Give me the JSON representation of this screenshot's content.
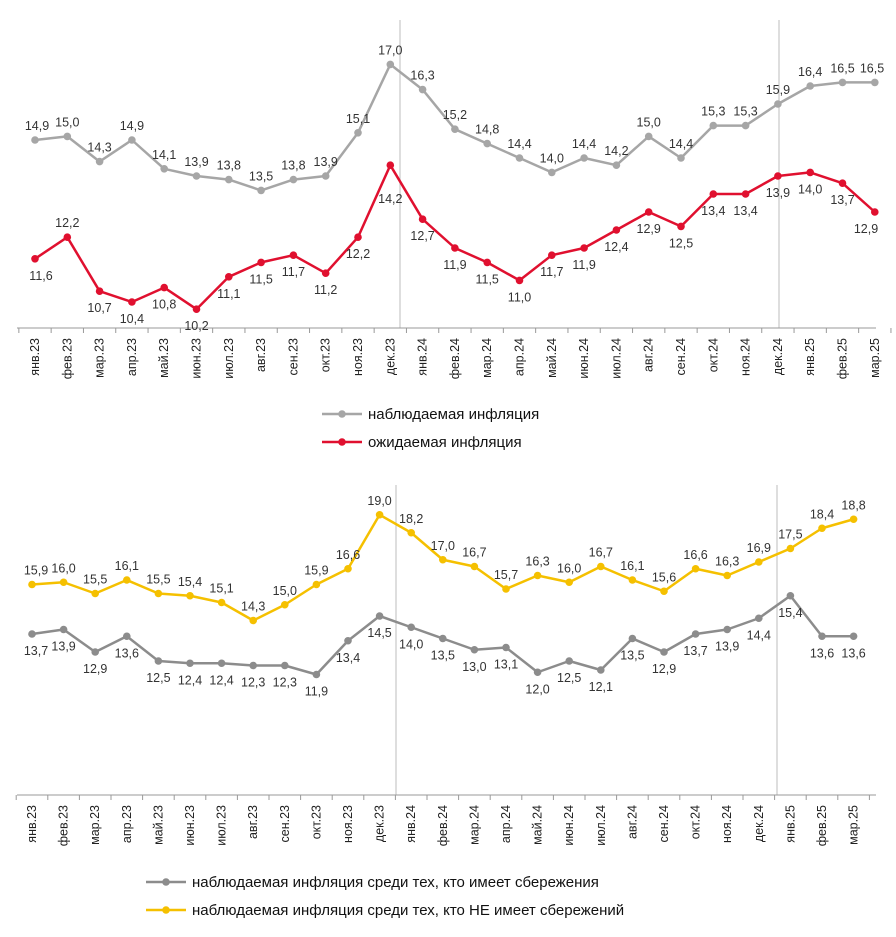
{
  "categories": [
    "янв.23",
    "фев.23",
    "мар.23",
    "апр.23",
    "май.23",
    "июн.23",
    "июл.23",
    "авг.23",
    "сен.23",
    "окт.23",
    "ноя.23",
    "дек.23",
    "янв.24",
    "фев.24",
    "мар.24",
    "апр.24",
    "май.24",
    "июн.24",
    "июл.24",
    "авг.24",
    "сен.24",
    "окт.24",
    "ноя.24",
    "дек.24",
    "янв.25",
    "фев.25",
    "мар.25"
  ],
  "chart_data": [
    {
      "type": "line",
      "title": "",
      "xlabel": "",
      "ylabel": "",
      "ylim": [
        6,
        19
      ],
      "grid": false,
      "vertical_markers": [
        "дек.23|янв.24",
        "дек.24|янв.25"
      ],
      "legend_position": "bottom",
      "series": [
        {
          "name": "наблюдаемая  инфляция",
          "color": "#a6a6a6",
          "values": [
            14.9,
            15.0,
            14.3,
            14.9,
            14.1,
            13.9,
            13.8,
            13.5,
            13.8,
            13.9,
            15.1,
            17.0,
            16.3,
            15.2,
            14.8,
            14.4,
            14.0,
            14.4,
            14.2,
            15.0,
            14.4,
            15.3,
            15.3,
            15.9,
            16.4,
            16.5,
            16.5
          ],
          "labels": [
            "14,9",
            "15,0",
            "14,3",
            "14,9",
            "14,1",
            "13,9",
            "13,8",
            "13,5",
            "13,8",
            "13,9",
            "15,1",
            "17,0",
            "16,3",
            "15,2",
            "14,8",
            "14,4",
            "14,0",
            "14,4",
            "14,2",
            "15,0",
            "14,4",
            "15,3",
            "15,3",
            "15,9",
            "16,4",
            "16,5",
            "16,5"
          ]
        },
        {
          "name": "ожидаемая  инфляция",
          "color": "#e0102f",
          "values": [
            11.6,
            12.2,
            10.7,
            10.4,
            10.8,
            10.2,
            11.1,
            11.5,
            11.7,
            11.2,
            12.2,
            14.2,
            12.7,
            11.9,
            11.5,
            11.0,
            11.7,
            11.9,
            12.4,
            12.9,
            12.5,
            13.4,
            13.4,
            13.9,
            14.0,
            13.7,
            12.9
          ],
          "labels": [
            "11,6",
            "12,2",
            "10,7",
            "10,4",
            "10,8",
            "10,2",
            "11,1",
            "11,5",
            "11,7",
            "11,2",
            "12,2",
            "14,2",
            "12,7",
            "11,9",
            "11,5",
            "11,0",
            "11,7",
            "11,9",
            "12,4",
            "12,9",
            "12,5",
            "13,4",
            "13,4",
            "13,9",
            "14,0",
            "13,7",
            "12,9"
          ]
        }
      ]
    },
    {
      "type": "line",
      "title": "",
      "xlabel": "",
      "ylabel": "",
      "ylim": [
        6,
        20
      ],
      "grid": false,
      "vertical_markers": [
        "дек.23|янв.24",
        "дек.24|янв.25"
      ],
      "legend_position": "bottom",
      "series": [
        {
          "name": "наблюдаемая  инфляция  среди тех, кто имеет сбережения",
          "color": "#8c8c8c",
          "values": [
            13.7,
            13.9,
            12.9,
            13.6,
            12.5,
            12.4,
            12.4,
            12.3,
            12.3,
            11.9,
            13.4,
            14.5,
            14.0,
            13.5,
            13.0,
            13.1,
            12.0,
            12.5,
            12.1,
            13.5,
            12.9,
            13.7,
            13.9,
            14.4,
            15.4,
            13.6,
            13.6
          ],
          "labels": [
            "13,7",
            "13,9",
            "12,9",
            "13,6",
            "12,5",
            "12,4",
            "12,4",
            "12,3",
            "12,3",
            "11,9",
            "13,4",
            "14,5",
            "14,0",
            "13,5",
            "13,0",
            "13,1",
            "12,0",
            "12,5",
            "12,1",
            "13,5",
            "12,9",
            "13,7",
            "13,9",
            "14,4",
            "15,4",
            "13,6",
            "13,6"
          ]
        },
        {
          "name": "наблюдаемая  инфляция  среди тех, кто НЕ имеет  сбережений",
          "color": "#f5c000",
          "values": [
            15.9,
            16.0,
            15.5,
            16.1,
            15.5,
            15.4,
            15.1,
            14.3,
            15.0,
            15.9,
            16.6,
            19.0,
            18.2,
            17.0,
            16.7,
            15.7,
            16.3,
            16.0,
            16.7,
            16.1,
            15.6,
            16.6,
            16.3,
            16.9,
            17.5,
            18.4,
            18.8
          ],
          "labels": [
            "15,9",
            "16,0",
            "15,5",
            "16,1",
            "15,5",
            "15,4",
            "15,1",
            "14,3",
            "15,0",
            "15,9",
            "16,6",
            "19,0",
            "18,2",
            "17,0",
            "16,7",
            "15,7",
            "16,3",
            "16,0",
            "16,7",
            "16,1",
            "15,6",
            "16,6",
            "16,3",
            "16,9",
            "17,5",
            "18,4",
            "18,8"
          ]
        }
      ]
    }
  ]
}
